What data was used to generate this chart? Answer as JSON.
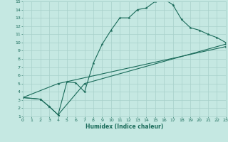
{
  "xlabel": "Humidex (Indice chaleur)",
  "bg_color": "#c5e8e2",
  "grid_color": "#a8d0ca",
  "line_color": "#1a6b5a",
  "xlim": [
    0,
    23
  ],
  "ylim": [
    1,
    15
  ],
  "xticks": [
    0,
    1,
    2,
    3,
    4,
    5,
    6,
    7,
    8,
    9,
    10,
    11,
    12,
    13,
    14,
    15,
    16,
    17,
    18,
    19,
    20,
    21,
    22,
    23
  ],
  "yticks": [
    1,
    2,
    3,
    4,
    5,
    6,
    7,
    8,
    9,
    10,
    11,
    12,
    13,
    14,
    15
  ],
  "line1_x": [
    0,
    2,
    3,
    4,
    5,
    6,
    7,
    8,
    9,
    10,
    11,
    12,
    13,
    14,
    15,
    16,
    17,
    18,
    19,
    20,
    21,
    22,
    23
  ],
  "line1_y": [
    3.3,
    3.1,
    2.2,
    1.2,
    5.2,
    5.1,
    4.0,
    7.5,
    9.8,
    11.5,
    13.0,
    13.0,
    14.0,
    14.2,
    15.0,
    15.3,
    14.6,
    12.8,
    11.8,
    11.5,
    11.0,
    10.6,
    10.0
  ],
  "line2_x": [
    0,
    2,
    3,
    4,
    7,
    23
  ],
  "line2_y": [
    3.3,
    3.1,
    2.2,
    1.2,
    5.0,
    9.8
  ],
  "line3_x": [
    0,
    4,
    23
  ],
  "line3_y": [
    3.3,
    5.0,
    9.5
  ],
  "xlabel_fontsize": 5.5,
  "tick_fontsize": 4.5,
  "linewidth": 0.8,
  "markersize": 2.5
}
